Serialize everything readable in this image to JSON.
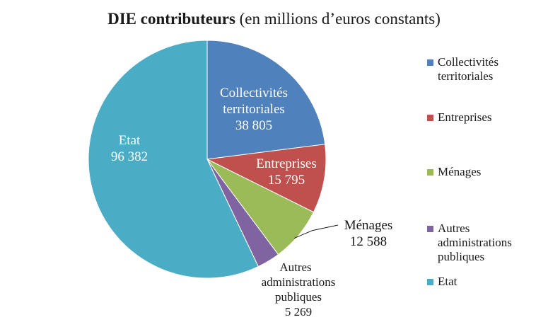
{
  "chart_data": {
    "type": "pie",
    "title_bold": "DIE contributeurs",
    "title_rest": " (en millions d’euros constants)",
    "slices": [
      {
        "label": "Collectivités territoriales",
        "value_text": "38 805",
        "value": 38805,
        "color": "#4f81bd"
      },
      {
        "label": "Entreprises",
        "value_text": "15 795",
        "value": 15795,
        "color": "#c0504d"
      },
      {
        "label": "Ménages",
        "value_text": "12 588",
        "value": 12588,
        "color": "#9bbb59"
      },
      {
        "label": "Autres administrations publiques",
        "value_text": "5 269",
        "value": 5269,
        "color": "#8064a2"
      },
      {
        "label": "Etat",
        "value_text": "96 382",
        "value": 96382,
        "color": "#4bacc6"
      }
    ],
    "legend_position": "right"
  }
}
